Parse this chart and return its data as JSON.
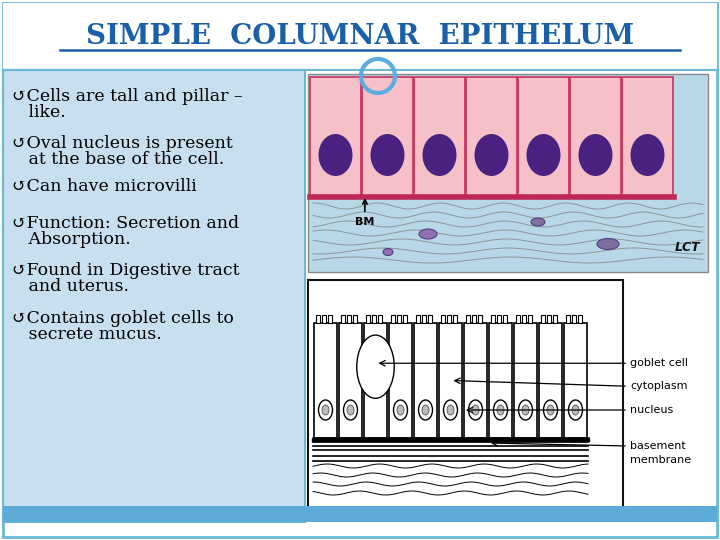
{
  "title": "SIMPLE  COLUMNAR  EPITHELUM",
  "title_color": "#1A5FA8",
  "bg_color": "#FFFFFF",
  "slide_border_color": "#6BB8D4",
  "text_panel_bg": "#C8DFF0",
  "text_panel_border": "#6BB8D4",
  "bottom_bar_color": "#5BAAD8",
  "bullet_points": [
    "↺Cells are tall and pillar –\n   like.",
    "↺Oval nucleus is present\n   at the base of the cell.",
    "↺Can have microvilli",
    "↺Function: Secretion and\n   Absorption.",
    "↺Found in Digestive tract\n   and uterus.",
    "↺Contains goblet cells to\n   secrete mucus."
  ],
  "circle_color": "#5AACE0",
  "cell_fill": "#F5C0C8",
  "cell_border": "#C83060",
  "nucleus_fill": "#4A2080",
  "bm_label": "BM",
  "lct_label": "LCT",
  "lct_bg": "#B8D8E8",
  "font_size_title": 20,
  "font_size_bullets": 12.5
}
